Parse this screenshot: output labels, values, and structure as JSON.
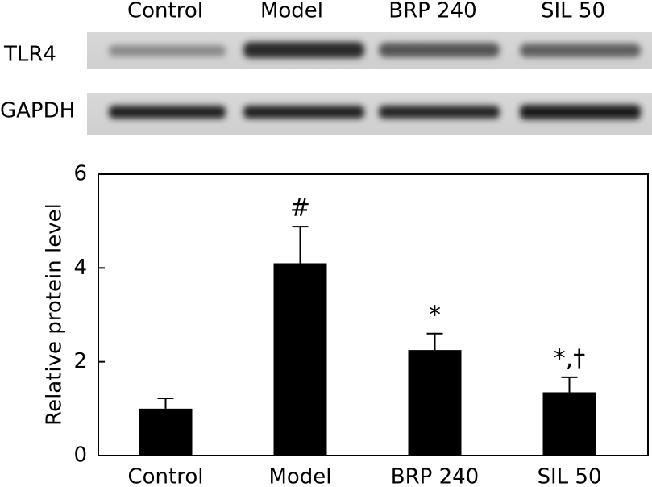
{
  "blot": {
    "columns": [
      "Control",
      "Model",
      "BRP 240",
      "SIL 50"
    ],
    "rows": [
      "TLR4",
      "GAPDH"
    ]
  },
  "chart_data": {
    "type": "bar",
    "y_label": "Relative protein level",
    "categories": [
      "Control",
      "Model",
      "BRP 240",
      "SIL 50"
    ],
    "values": [
      1.0,
      4.1,
      2.25,
      1.35
    ],
    "errors": [
      0.22,
      0.78,
      0.35,
      0.32
    ],
    "annotations": [
      null,
      "#",
      "*",
      "*,†"
    ],
    "color": "#000000",
    "ylim": [
      0,
      6
    ],
    "yticks": [
      0,
      2,
      4,
      6
    ]
  }
}
